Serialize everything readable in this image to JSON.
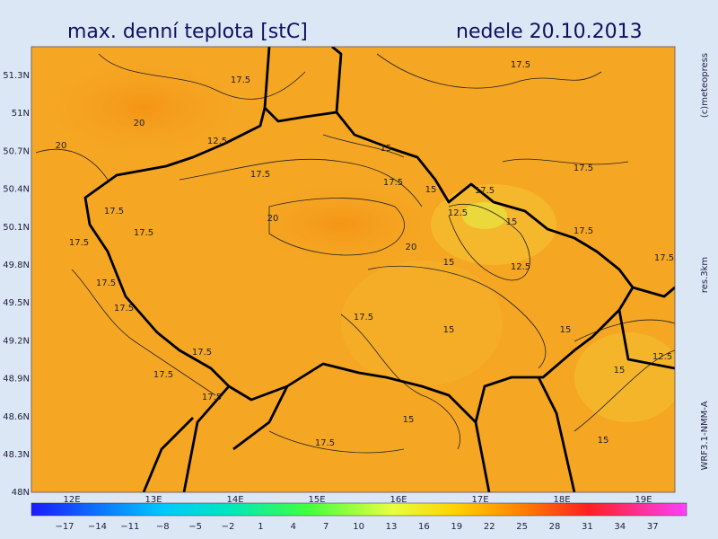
{
  "header": {
    "title": "max. denní teplota [stC]",
    "date": "nedele 20.10.2013"
  },
  "map": {
    "lat_labels": [
      "51.3N",
      "51N",
      "50.7N",
      "50.4N",
      "50.1N",
      "49.8N",
      "49.5N",
      "49.2N",
      "48.9N",
      "48.6N",
      "48.3N",
      "48N"
    ],
    "lon_labels": [
      "12E",
      "13E",
      "14E",
      "15E",
      "16E",
      "17E",
      "18E",
      "19E"
    ],
    "contour_labels": [
      "17.5",
      "17.5",
      "20",
      "20",
      "12.5",
      "17.5",
      "17.5",
      "15",
      "17.5",
      "17.5",
      "20",
      "20",
      "17.5",
      "15",
      "12.5",
      "15",
      "12.5",
      "17.5",
      "17.5",
      "17.5",
      "17.5",
      "15",
      "17.5",
      "15",
      "17.5",
      "15",
      "15",
      "12.5",
      "17.5",
      "17.5",
      "15",
      "17.5",
      "17.5",
      "15",
      "17.5"
    ]
  },
  "colorbar": {
    "ticks": [
      "−17",
      "−14",
      "−11",
      "−8",
      "−5",
      "−2",
      "1",
      "4",
      "7",
      "10",
      "13",
      "16",
      "19",
      "22",
      "25",
      "28",
      "31",
      "34",
      "37"
    ]
  },
  "side": {
    "copyright": "(c)meteopress",
    "resolution": "res.3km",
    "model": "WRF3.1-NMM-A"
  }
}
